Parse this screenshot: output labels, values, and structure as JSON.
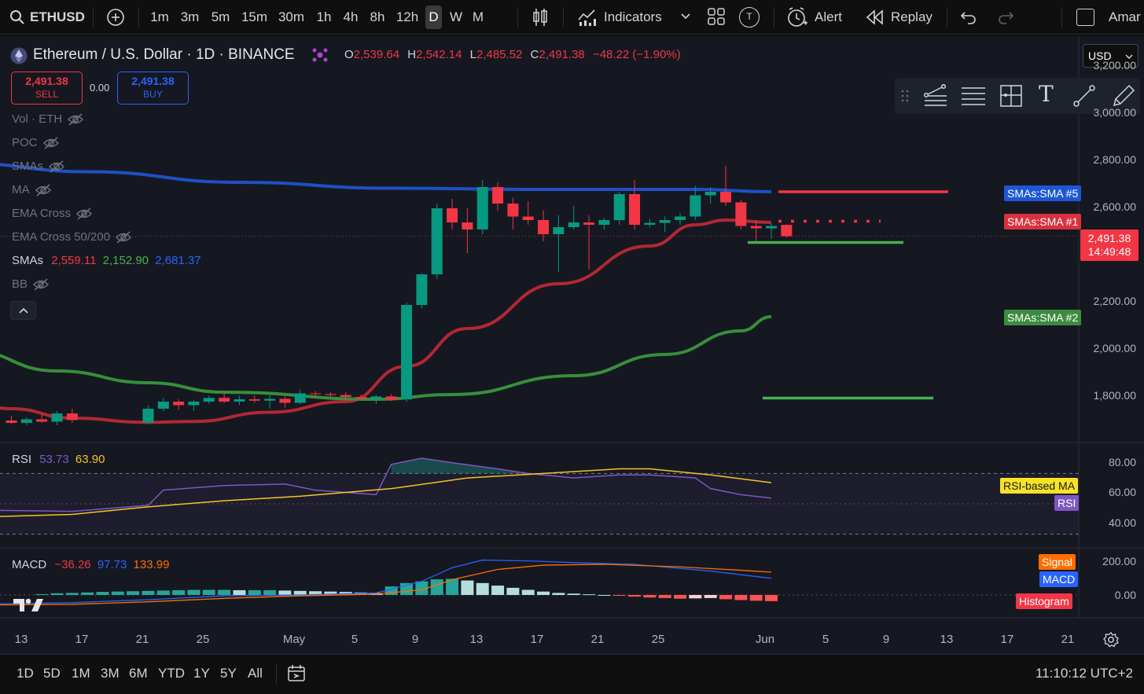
{
  "toolbar": {
    "symbol": "ETHUSD",
    "timeframes": [
      "1m",
      "3m",
      "5m",
      "15m",
      "30m",
      "1h",
      "4h",
      "8h",
      "12h",
      "D",
      "W",
      "M"
    ],
    "active_timeframe": "D",
    "indicators_label": "Indicators",
    "template_badge": "T",
    "alert_label": "Alert",
    "replay_label": "Replay",
    "user_label": "Amar"
  },
  "legend": {
    "title": "Ethereum / U.S. Dollar · 1D · BINANCE",
    "open_key": "O",
    "open": "2,539.64",
    "high_key": "H",
    "high": "2,542.14",
    "low_key": "L",
    "low": "2,485.52",
    "close_key": "C",
    "close": "2,491.38",
    "change": "−48.22 (−1.90%)"
  },
  "trade": {
    "sell_price": "2,491.38",
    "sell_label": "SELL",
    "spread": "0.00",
    "buy_price": "2,491.38",
    "buy_label": "BUY"
  },
  "indicators": {
    "vol": "Vol · ETH",
    "poc": "POC",
    "smas_hidden": "SMAs",
    "ma": "MA",
    "ema_cross": "EMA Cross",
    "ema_cross_50_200": "EMA Cross 50/200",
    "smas_label": "SMAs",
    "sma1": "2,559.11",
    "sma2": "2,152.90",
    "sma5": "2,681.37",
    "bb": "BB"
  },
  "currency": "USD",
  "price_axis": [
    "3,200.00",
    "3,000.00",
    "2,800.00",
    "2,600.00",
    "2,400.00",
    "2,200.00",
    "2,000.00",
    "1,800.00"
  ],
  "tags": {
    "sma5": "SMAs:SMA #5",
    "sma1": "SMAs:SMA #1",
    "sma2": "SMAs:SMA #2",
    "last_price": "2,491.38",
    "countdown": "14:49:48",
    "rsi_ma": "RSI-based MA",
    "rsi": "RSI",
    "signal": "Signal",
    "macd": "MACD",
    "histogram": "Histogram"
  },
  "rsi_pane": {
    "label": "RSI",
    "rsi_value": "53.73",
    "ma_value": "63.90",
    "axis": [
      "80.00",
      "60.00",
      "40.00"
    ]
  },
  "macd_pane": {
    "label": "MACD",
    "hist_value": "−36.26",
    "macd_value": "97.73",
    "signal_value": "133.99",
    "axis": [
      "200.00",
      "0.00"
    ]
  },
  "time_axis": [
    "13",
    "17",
    "21",
    "25",
    "May",
    "5",
    "9",
    "13",
    "17",
    "21",
    "25",
    "Jun",
    "5",
    "9",
    "13",
    "17",
    "21"
  ],
  "ranges": [
    "1D",
    "5D",
    "1M",
    "3M",
    "6M",
    "YTD",
    "1Y",
    "5Y",
    "All"
  ],
  "clock": "11:10:12 UTC+2",
  "colors": {
    "up": "#089981",
    "down": "#f23645",
    "sma1": "#b22833",
    "sma2": "#388e3c",
    "sma5": "#1e4fc8",
    "rsi": "#7e57c2",
    "rsi_ma": "#f7c325",
    "macd": "#2962ff",
    "signal": "#ff6d00"
  },
  "chart_data": {
    "type": "candlestick",
    "title": "Ethereum / U.S. Dollar · 1D · BINANCE",
    "y_axis_range": [
      1700,
      3300
    ],
    "x_range_dates": [
      "2024-04-12",
      "2024-06-02"
    ],
    "candles": [
      {
        "date": "2024-04-12",
        "o": 1710,
        "h": 1730,
        "l": 1695,
        "c": 1700
      },
      {
        "date": "2024-04-13",
        "o": 1700,
        "h": 1725,
        "l": 1690,
        "c": 1715
      },
      {
        "date": "2024-04-14",
        "o": 1715,
        "h": 1740,
        "l": 1700,
        "c": 1705
      },
      {
        "date": "2024-04-15",
        "o": 1705,
        "h": 1750,
        "l": 1690,
        "c": 1740
      },
      {
        "date": "2024-04-16",
        "o": 1740,
        "h": 1760,
        "l": 1700,
        "c": 1712
      },
      {
        "date": "2024-04-21",
        "o": 1700,
        "h": 1775,
        "l": 1695,
        "c": 1760
      },
      {
        "date": "2024-04-22",
        "o": 1760,
        "h": 1805,
        "l": 1750,
        "c": 1790
      },
      {
        "date": "2024-04-23",
        "o": 1790,
        "h": 1800,
        "l": 1755,
        "c": 1775
      },
      {
        "date": "2024-04-24",
        "o": 1775,
        "h": 1795,
        "l": 1750,
        "c": 1790
      },
      {
        "date": "2024-04-25",
        "o": 1790,
        "h": 1815,
        "l": 1780,
        "c": 1806
      },
      {
        "date": "2024-04-26",
        "o": 1806,
        "h": 1830,
        "l": 1785,
        "c": 1790
      },
      {
        "date": "2024-04-27",
        "o": 1790,
        "h": 1815,
        "l": 1775,
        "c": 1800
      },
      {
        "date": "2024-04-28",
        "o": 1800,
        "h": 1815,
        "l": 1785,
        "c": 1794
      },
      {
        "date": "2024-04-29",
        "o": 1794,
        "h": 1820,
        "l": 1760,
        "c": 1802
      },
      {
        "date": "2024-04-30",
        "o": 1802,
        "h": 1812,
        "l": 1765,
        "c": 1785
      },
      {
        "date": "2024-05-01",
        "o": 1785,
        "h": 1840,
        "l": 1780,
        "c": 1825
      },
      {
        "date": "2024-05-02",
        "o": 1825,
        "h": 1835,
        "l": 1805,
        "c": 1822
      },
      {
        "date": "2024-05-03",
        "o": 1822,
        "h": 1830,
        "l": 1812,
        "c": 1818
      },
      {
        "date": "2024-05-04",
        "o": 1818,
        "h": 1830,
        "l": 1800,
        "c": 1810
      },
      {
        "date": "2024-05-05",
        "o": 1810,
        "h": 1820,
        "l": 1795,
        "c": 1802
      },
      {
        "date": "2024-05-06",
        "o": 1802,
        "h": 1818,
        "l": 1780,
        "c": 1812
      },
      {
        "date": "2024-05-07",
        "o": 1812,
        "h": 1822,
        "l": 1792,
        "c": 1798
      },
      {
        "date": "2024-05-08",
        "o": 1800,
        "h": 2210,
        "l": 1790,
        "c": 2200
      },
      {
        "date": "2024-05-09",
        "o": 2200,
        "h": 2335,
        "l": 2185,
        "c": 2330
      },
      {
        "date": "2024-05-10",
        "o": 2330,
        "h": 2630,
        "l": 2310,
        "c": 2610
      },
      {
        "date": "2024-05-11",
        "o": 2610,
        "h": 2650,
        "l": 2520,
        "c": 2550
      },
      {
        "date": "2024-05-12",
        "o": 2550,
        "h": 2610,
        "l": 2420,
        "c": 2520
      },
      {
        "date": "2024-05-13",
        "o": 2520,
        "h": 2730,
        "l": 2500,
        "c": 2700
      },
      {
        "date": "2024-05-14",
        "o": 2700,
        "h": 2720,
        "l": 2600,
        "c": 2630
      },
      {
        "date": "2024-05-15",
        "o": 2630,
        "h": 2655,
        "l": 2520,
        "c": 2575
      },
      {
        "date": "2024-05-16",
        "o": 2575,
        "h": 2640,
        "l": 2540,
        "c": 2560
      },
      {
        "date": "2024-05-17",
        "o": 2560,
        "h": 2600,
        "l": 2470,
        "c": 2500
      },
      {
        "date": "2024-05-18",
        "o": 2500,
        "h": 2580,
        "l": 2340,
        "c": 2530
      },
      {
        "date": "2024-05-19",
        "o": 2530,
        "h": 2620,
        "l": 2520,
        "c": 2550
      },
      {
        "date": "2024-05-20",
        "o": 2550,
        "h": 2580,
        "l": 2350,
        "c": 2540
      },
      {
        "date": "2024-05-21",
        "o": 2540,
        "h": 2570,
        "l": 2520,
        "c": 2560
      },
      {
        "date": "2024-05-22",
        "o": 2560,
        "h": 2680,
        "l": 2540,
        "c": 2670
      },
      {
        "date": "2024-05-23",
        "o": 2670,
        "h": 2730,
        "l": 2520,
        "c": 2540
      },
      {
        "date": "2024-05-24",
        "o": 2540,
        "h": 2565,
        "l": 2528,
        "c": 2548
      },
      {
        "date": "2024-05-25",
        "o": 2548,
        "h": 2575,
        "l": 2510,
        "c": 2560
      },
      {
        "date": "2024-05-26",
        "o": 2560,
        "h": 2590,
        "l": 2540,
        "c": 2575
      },
      {
        "date": "2024-05-27",
        "o": 2575,
        "h": 2705,
        "l": 2560,
        "c": 2665
      },
      {
        "date": "2024-05-28",
        "o": 2665,
        "h": 2700,
        "l": 2630,
        "c": 2680
      },
      {
        "date": "2024-05-29",
        "o": 2680,
        "h": 2790,
        "l": 2620,
        "c": 2635
      },
      {
        "date": "2024-05-30",
        "o": 2635,
        "h": 2645,
        "l": 2520,
        "c": 2535
      },
      {
        "date": "2024-05-31",
        "o": 2535,
        "h": 2560,
        "l": 2470,
        "c": 2525
      },
      {
        "date": "2024-06-01",
        "o": 2525,
        "h": 2545,
        "l": 2480,
        "c": 2535
      },
      {
        "date": "2024-06-02",
        "o": 2539.64,
        "h": 2542.14,
        "l": 2485.52,
        "c": 2491.38
      }
    ],
    "series": [
      {
        "name": "SMA #5",
        "values": [
          [
            -3,
            2800
          ],
          [
            5,
            2765
          ],
          [
            15,
            2720
          ],
          [
            25,
            2695
          ],
          [
            35,
            2690
          ],
          [
            45,
            2690
          ],
          [
            50,
            2680
          ]
        ]
      },
      {
        "name": "SMA #1",
        "values": [
          [
            -3,
            1790
          ],
          [
            0,
            1760
          ],
          [
            4,
            1720
          ],
          [
            9,
            1702
          ],
          [
            12,
            1706
          ],
          [
            17,
            1745
          ],
          [
            22,
            1790
          ],
          [
            26,
            1940
          ],
          [
            30,
            2100
          ],
          [
            36,
            2290
          ],
          [
            42,
            2450
          ],
          [
            45,
            2540
          ],
          [
            47,
            2560
          ],
          [
            50,
            2550
          ]
        ]
      },
      {
        "name": "SMA #2",
        "values": [
          [
            -3,
            2010
          ],
          [
            3,
            1920
          ],
          [
            9,
            1870
          ],
          [
            14,
            1830
          ],
          [
            24,
            1800
          ],
          [
            29,
            1820
          ],
          [
            37,
            1900
          ],
          [
            43,
            1990
          ],
          [
            48,
            2090
          ],
          [
            50,
            2150
          ]
        ]
      }
    ],
    "horizontal_lines": [
      {
        "price": 2680,
        "style": "solid",
        "color": "red"
      },
      {
        "price": 2555,
        "style": "dotted",
        "color": "red"
      },
      {
        "price": 2465,
        "style": "solid",
        "color": "green"
      },
      {
        "price": 1805,
        "style": "solid",
        "color": "green"
      }
    ],
    "rsi": {
      "y_axis_range": [
        30,
        90
      ],
      "bands": [
        70,
        30
      ],
      "rsi_values": [
        [
          -3,
          46
        ],
        [
          4,
          45
        ],
        [
          9,
          49
        ],
        [
          10,
          59
        ],
        [
          14,
          62
        ],
        [
          18,
          63
        ],
        [
          20,
          59
        ],
        [
          24,
          56
        ],
        [
          25,
          76
        ],
        [
          27,
          80
        ],
        [
          29,
          77
        ],
        [
          32,
          73
        ],
        [
          34,
          70
        ],
        [
          37,
          67
        ],
        [
          40,
          69
        ],
        [
          42,
          69
        ],
        [
          45,
          67
        ],
        [
          46,
          60
        ],
        [
          48,
          56
        ],
        [
          50,
          53.73
        ]
      ],
      "ma_values": [
        [
          -3,
          41
        ],
        [
          4,
          43
        ],
        [
          9,
          48
        ],
        [
          14,
          52
        ],
        [
          19,
          55
        ],
        [
          25,
          60
        ],
        [
          30,
          67
        ],
        [
          35,
          70
        ],
        [
          40,
          73
        ],
        [
          42,
          73
        ],
        [
          46,
          69
        ],
        [
          50,
          63.9
        ]
      ]
    },
    "macd": {
      "y_axis_range": [
        -60,
        260
      ],
      "macd_values": [
        [
          -3,
          -55
        ],
        [
          4,
          -45
        ],
        [
          9,
          -28
        ],
        [
          14,
          -5
        ],
        [
          19,
          0
        ],
        [
          24,
          12
        ],
        [
          27,
          80
        ],
        [
          29,
          160
        ],
        [
          31,
          205
        ],
        [
          34,
          200
        ],
        [
          37,
          190
        ],
        [
          41,
          180
        ],
        [
          46,
          140
        ],
        [
          50,
          97.73
        ]
      ],
      "signal_values": [
        [
          -3,
          -60
        ],
        [
          4,
          -55
        ],
        [
          9,
          -40
        ],
        [
          14,
          -20
        ],
        [
          19,
          -5
        ],
        [
          24,
          5
        ],
        [
          27,
          30
        ],
        [
          29,
          90
        ],
        [
          32,
          150
        ],
        [
          35,
          175
        ],
        [
          39,
          180
        ],
        [
          44,
          165
        ],
        [
          48,
          145
        ],
        [
          50,
          133.99
        ]
      ],
      "histogram": [
        5,
        10,
        12,
        15,
        18,
        20,
        22,
        24,
        26,
        28,
        30,
        30,
        30,
        28,
        28,
        28,
        26,
        24,
        22,
        20,
        18,
        15,
        12,
        50,
        70,
        80,
        92,
        95,
        85,
        70,
        55,
        42,
        30,
        20,
        12,
        8,
        4,
        0,
        -5,
        -10,
        -15,
        -18,
        -22,
        -20,
        -18,
        -25,
        -30,
        -34,
        -36.26
      ]
    }
  }
}
